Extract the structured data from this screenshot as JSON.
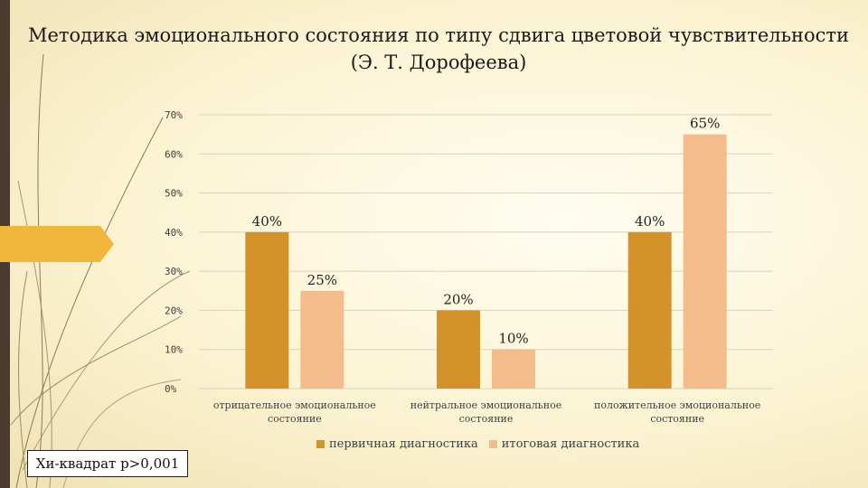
{
  "slide": {
    "title": "Методика эмоционального состояния по типу сдвига цветовой чувствительности (Э. Т. Дорофеева)",
    "note": "Хи-квадрат р>0,001"
  },
  "colors": {
    "series_primary": "#d4922b",
    "series_final": "#f4bc8a",
    "accent_arrow": "#f2b63d",
    "left_bar": "#4a3b2e"
  },
  "chart_data": {
    "type": "bar",
    "categories": [
      "отрицательное эмоциональное состояние",
      "нейтральное эмоциональное состояние",
      "положительное эмоциональное состояние"
    ],
    "category_lines": [
      [
        "отрицательное эмоциональное",
        "состояние"
      ],
      [
        "нейтральное эмоциональное",
        "состояние"
      ],
      [
        "положительное эмоциональное",
        "состояние"
      ]
    ],
    "series": [
      {
        "name": "первичная диагностика",
        "values": [
          40,
          20,
          40
        ]
      },
      {
        "name": "итоговая диагностика",
        "values": [
          25,
          10,
          65
        ]
      }
    ],
    "value_labels": [
      [
        "40%",
        "20%",
        "40%"
      ],
      [
        "25%",
        "10%",
        "65%"
      ]
    ],
    "yticks": [
      "0%",
      "10%",
      "20%",
      "30%",
      "40%",
      "50%",
      "60%",
      "70%"
    ],
    "ylim": [
      0,
      70
    ],
    "unit": "%",
    "grid": true,
    "legend_position": "bottom"
  }
}
